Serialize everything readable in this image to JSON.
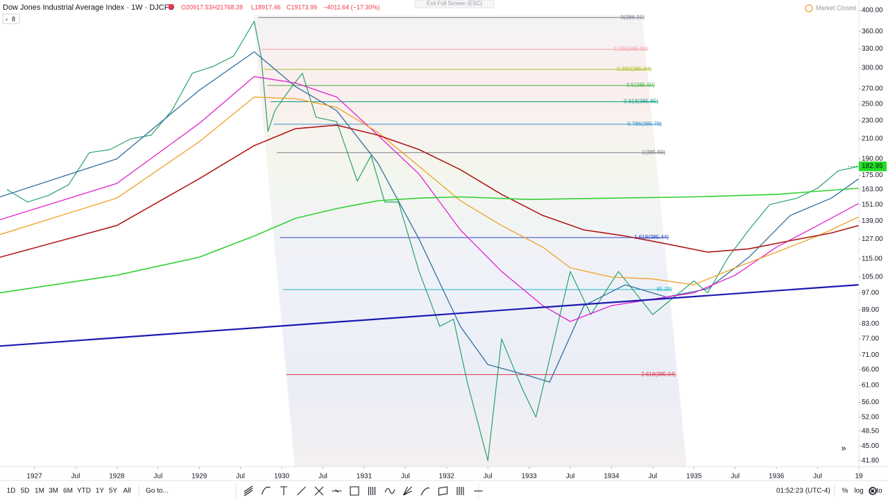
{
  "header": {
    "title": "Dow Jones Industrial Average Index · 1W · DJCFD",
    "ohlc": [
      "O20917.53",
      "H21768.28",
      "L18917.46",
      "C19173.99",
      "−4011.64 (−17.30%)"
    ],
    "indicators_count": "8",
    "exit_fullscreen": "Exit Full Screen (ESC)",
    "market_status": "Market Closed"
  },
  "chart_data": {
    "type": "line",
    "log_scale": true,
    "xlim": [
      "1926-08",
      "1937-01"
    ],
    "ylim": [
      38.1,
      421.5
    ],
    "xticks": [
      {
        "value": "1927-01",
        "label": "1927"
      },
      {
        "value": "1927-07",
        "label": "Jul"
      },
      {
        "value": "1928-01",
        "label": "1928"
      },
      {
        "value": "1928-07",
        "label": "Jul"
      },
      {
        "value": "1929-01",
        "label": "1929"
      },
      {
        "value": "1929-07",
        "label": "Jul"
      },
      {
        "value": "1930-01",
        "label": "1930"
      },
      {
        "value": "1930-07",
        "label": "Jul"
      },
      {
        "value": "1931-01",
        "label": "1931"
      },
      {
        "value": "1931-07",
        "label": "Jul"
      },
      {
        "value": "1932-01",
        "label": "1932"
      },
      {
        "value": "1932-07",
        "label": "Jul"
      },
      {
        "value": "1933-01",
        "label": "1933"
      },
      {
        "value": "1933-07",
        "label": "Jul"
      },
      {
        "value": "1934-01",
        "label": "1934"
      },
      {
        "value": "1934-07",
        "label": "Jul"
      },
      {
        "value": "1935-01",
        "label": "1935"
      },
      {
        "value": "1935-07",
        "label": "Jul"
      },
      {
        "value": "1936-01",
        "label": "1936"
      },
      {
        "value": "1936-07",
        "label": "Jul"
      },
      {
        "value": "1937-01",
        "label": "19"
      }
    ],
    "yticks": [
      {
        "value": 400,
        "label": "400.00"
      },
      {
        "value": 360,
        "label": "360.00"
      },
      {
        "value": 330,
        "label": "330.00"
      },
      {
        "value": 300,
        "label": "300.00"
      },
      {
        "value": 270,
        "label": "270.00"
      },
      {
        "value": 250,
        "label": "250.00"
      },
      {
        "value": 230,
        "label": "230.00"
      },
      {
        "value": 210,
        "label": "210.00"
      },
      {
        "value": 190,
        "label": "190.00"
      },
      {
        "value": 175,
        "label": "175.00"
      },
      {
        "value": 163,
        "label": "163.00"
      },
      {
        "value": 151,
        "label": "151.00"
      },
      {
        "value": 139,
        "label": "139.00"
      },
      {
        "value": 127,
        "label": "127.00"
      },
      {
        "value": 115,
        "label": "115.00"
      },
      {
        "value": 105,
        "label": "105.00"
      },
      {
        "value": 97,
        "label": "97.00"
      },
      {
        "value": 89,
        "label": "89.00"
      },
      {
        "value": 83,
        "label": "83.00"
      },
      {
        "value": 77,
        "label": "77.00"
      },
      {
        "value": 71,
        "label": "71.00"
      },
      {
        "value": 66,
        "label": "66.00"
      },
      {
        "value": 61,
        "label": "61.00"
      },
      {
        "value": 56,
        "label": "56.00"
      },
      {
        "value": 52,
        "label": "52.00"
      },
      {
        "value": 48.5,
        "label": "48.50"
      },
      {
        "value": 45,
        "label": "45.00"
      },
      {
        "value": 41.8,
        "label": "41.80"
      }
    ],
    "series": [
      {
        "color": "#26a269",
        "x": [
          "1926-09",
          "1926-12",
          "1927-03",
          "1927-06",
          "1927-09",
          "1927-12",
          "1928-03",
          "1928-06",
          "1928-09",
          "1928-12",
          "1929-03",
          "1929-06",
          "1929-09",
          "1929-10",
          "1929-11",
          "1929-12",
          "1930-02",
          "1930-04",
          "1930-06",
          "1930-09",
          "1930-12",
          "1931-02",
          "1931-04",
          "1931-06",
          "1931-09",
          "1931-12",
          "1932-02",
          "1932-04",
          "1932-07",
          "1932-09",
          "1932-12",
          "1933-02",
          "1933-07",
          "1933-10",
          "1934-02",
          "1934-07",
          "1935-01",
          "1935-03",
          "1935-06",
          "1935-09",
          "1935-12",
          "1936-04",
          "1936-07",
          "1936-10",
          "1937-01"
        ],
        "values": [
          163,
          153,
          158,
          167,
          196,
          199,
          210,
          214,
          242,
          292,
          302,
          318,
          379,
          318,
          218,
          242,
          267,
          292,
          234,
          229,
          170,
          193,
          153,
          153,
          108,
          82,
          85,
          62,
          41.8,
          77,
          60,
          52,
          108,
          87,
          108,
          87,
          103,
          97,
          116,
          133,
          151,
          156,
          164,
          179,
          182.95
        ]
      },
      {
        "color": "#2f6f9f",
        "x": [
          "1926-08",
          "1928-01",
          "1929-01",
          "1929-09",
          "1930-03",
          "1930-09",
          "1931-03",
          "1931-09",
          "1932-03",
          "1932-07",
          "1933-01",
          "1933-04",
          "1933-09",
          "1934-03",
          "1934-09",
          "1935-03",
          "1935-09",
          "1936-03",
          "1936-09",
          "1937-01"
        ],
        "values": [
          157,
          190,
          268,
          325,
          273,
          242,
          186,
          127,
          82,
          67.7,
          64,
          62,
          91,
          101,
          95,
          99,
          116,
          143,
          156,
          172
        ]
      },
      {
        "color": "#e020d0",
        "x": [
          "1926-08",
          "1928-01",
          "1929-01",
          "1929-09",
          "1930-03",
          "1930-09",
          "1931-03",
          "1931-09",
          "1932-03",
          "1932-09",
          "1933-03",
          "1933-07",
          "1934-01",
          "1934-07",
          "1935-01",
          "1935-07",
          "1936-01",
          "1936-07",
          "1937-01"
        ],
        "values": [
          140,
          168,
          227,
          287,
          278,
          259,
          214,
          176,
          133,
          108,
          91,
          84,
          91,
          94,
          97,
          106,
          122,
          136,
          152
        ]
      },
      {
        "color": "#f0a020",
        "x": [
          "1926-08",
          "1928-01",
          "1929-01",
          "1929-09",
          "1930-03",
          "1930-09",
          "1931-03",
          "1931-09",
          "1932-03",
          "1932-09",
          "1933-03",
          "1933-07",
          "1934-01",
          "1934-07",
          "1935-01",
          "1935-07",
          "1936-01",
          "1936-07",
          "1937-01"
        ],
        "values": [
          130,
          156,
          207,
          259,
          257,
          246,
          217,
          183,
          154,
          136,
          122,
          110,
          105,
          104,
          101,
          110,
          119,
          129,
          142
        ]
      },
      {
        "color": "#b01818",
        "x": [
          "1926-08",
          "1928-01",
          "1929-01",
          "1929-09",
          "1930-03",
          "1930-09",
          "1931-03",
          "1931-09",
          "1932-03",
          "1932-09",
          "1933-03",
          "1933-09",
          "1934-03",
          "1934-09",
          "1935-03",
          "1935-09",
          "1936-03",
          "1936-09",
          "1937-01"
        ],
        "values": [
          116,
          136,
          172,
          203,
          221,
          225,
          214,
          199,
          180,
          159,
          143,
          133,
          129,
          124,
          119,
          121,
          126,
          131,
          136
        ]
      },
      {
        "color": "#30d030",
        "x": [
          "1926-08",
          "1928-01",
          "1929-01",
          "1929-09",
          "1930-03",
          "1930-09",
          "1931-03",
          "1931-09",
          "1932-03",
          "1933-01",
          "1934-01",
          "1935-01",
          "1936-01",
          "1937-01"
        ],
        "values": [
          97,
          106,
          116,
          129,
          141,
          148,
          154,
          156,
          157,
          155,
          156,
          157,
          159,
          164
        ]
      },
      {
        "color": "#1a1ab0",
        "x": [
          "1926-08",
          "1937-01"
        ],
        "values": [
          74.3,
          101
        ]
      }
    ],
    "fib_levels": [
      {
        "value": 386,
        "label": "0(386.10)",
        "color": "#787b86"
      },
      {
        "value": 329,
        "label": "0.236(386.00)",
        "color": "#f7a0a6"
      },
      {
        "value": 297.6,
        "label": "0.382(385.94)",
        "color": "#a8c020"
      },
      {
        "value": 274.5,
        "label": "0.5(385.90)",
        "color": "#40b040"
      },
      {
        "value": 253,
        "label": "0.618(385.85)",
        "color": "#089981"
      },
      {
        "value": 226,
        "label": "0.786(385.78)",
        "color": "#3090d0"
      },
      {
        "value": 196,
        "label": "1(385.69)",
        "color": "#787b86"
      },
      {
        "value": 128,
        "label": "1.618(385.44)",
        "color": "#2944c0"
      },
      {
        "value": 98.6,
        "label": "85.29)",
        "color": "#20b8c8"
      },
      {
        "value": 64.4,
        "label": "2.618(385.04)",
        "color": "#e03040"
      }
    ],
    "last_price": 182.95
  },
  "toolbar": {
    "ranges": [
      "1D",
      "5D",
      "1M",
      "3M",
      "6M",
      "YTD",
      "1Y",
      "5Y",
      "All"
    ],
    "goto": "Go to...",
    "clock": "01:52:23 (UTC-4)",
    "options": [
      "%",
      "log",
      "auto"
    ]
  }
}
